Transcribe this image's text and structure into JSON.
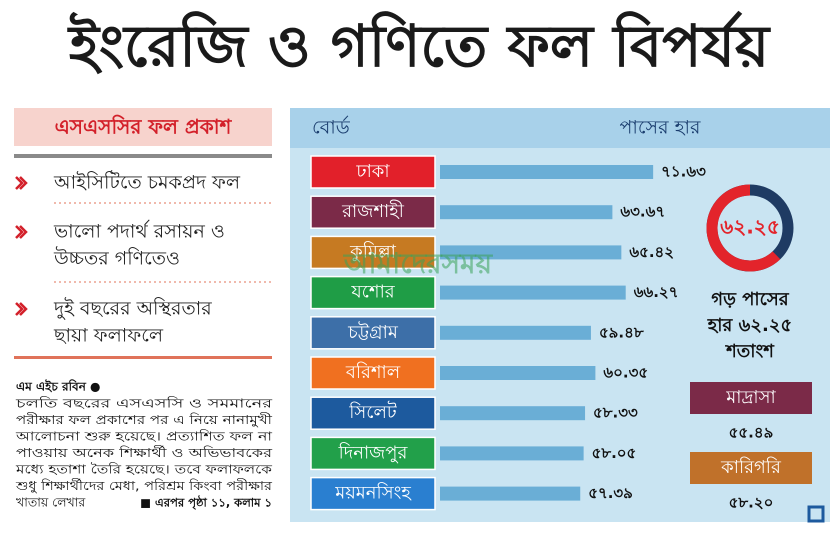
{
  "headline": "ইংরেজি ও গণিতে ফল বিপর্যয়",
  "sidebar": {
    "title": "এসএসসির ফল প্রকাশ",
    "items": [
      [
        "আইসিটিতে চমকপ্রদ ফল"
      ],
      [
        "ভালো পদার্থ রসায়ন ও",
        "উচ্চতর গণিতেও"
      ],
      [
        "দুই বছরের অস্থিরতার",
        "ছায়া ফলাফলে"
      ]
    ]
  },
  "article": {
    "byline": "এম এইচ রবিন ●",
    "lines": [
      "চলতি বছরের এসএসসি ও সমমানের",
      "পরীক্ষার ফল প্রকাশের পর এ নিয়ে নানামুখী",
      "আলোচনা শুরু হয়েছে। প্রত্যাশিত ফল না",
      "পাওয়ায় অনেক শিক্ষার্থী ও অভিভাবকের",
      "মধ্যে হতাশা তৈরি হয়েছে। তবে ফলাফলকে",
      "শুধু শিক্ষার্থীদের মেধা, পরিশ্রম কিংবা পরীক্ষার",
      "খাতায় লেখার"
    ],
    "continued": "■ এরপর পৃষ্ঠা ১১, কলাম ১"
  },
  "watermark": "আমাদেরসময়",
  "chart_data": {
    "type": "bar",
    "orientation": "horizontal",
    "category_header": "বোর্ড",
    "value_header": "পাসের হার",
    "categories": [
      "ঢাকা",
      "রাজশাহী",
      "কুমিল্লা",
      "যশোর",
      "চট্টগ্রাম",
      "বরিশাল",
      "সিলেট",
      "দিনাজপুর",
      "ময়মনসিংহ"
    ],
    "category_colors": [
      "#e2202a",
      "#7b2a48",
      "#c67a22",
      "#1f9d46",
      "#3d6fa8",
      "#f07020",
      "#1d5a9e",
      "#22a04a",
      "#2a7fd0"
    ],
    "values": [
      71.63,
      63.67,
      65.42,
      66.27,
      59.48,
      60.35,
      58.33,
      58.05,
      57.39
    ],
    "value_labels": [
      "৭১.৬৩",
      "৬৩.৬৭",
      "৬৫.৪২",
      "৬৬.২৭",
      "৫৯.৪৮",
      "৬০.৩৫",
      "৫৮.৩৩",
      "৫৮.০৫",
      "৫৭.৩৯"
    ],
    "color": "#6aaed6",
    "xlim": [
      30,
      80
    ]
  },
  "average": {
    "value": 62.25,
    "label": "৬২.২৫",
    "color": "#e3242b",
    "rest_color": "#1f3b63",
    "caption": [
      "গড় পাসের",
      "হার ৬২.২৫",
      "শতাংশ"
    ]
  },
  "others": [
    {
      "name": "মাদ্রাসা",
      "color": "#7b2a48",
      "rate": "৫৫.৪৯"
    },
    {
      "name": "কারিগরি",
      "color": "#c0712a",
      "rate": "৫৮.২০"
    }
  ]
}
